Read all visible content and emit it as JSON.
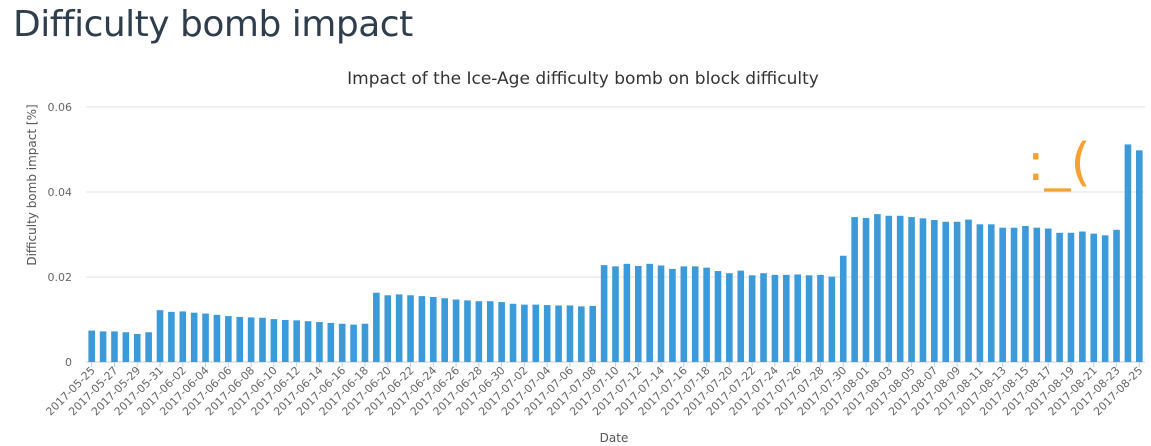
{
  "page": {
    "heading": "Difficulty bomb impact"
  },
  "chart_data": {
    "type": "bar",
    "title": "Impact of the Ice-Age difficulty bomb on block difficulty",
    "xlabel": "Date",
    "ylabel": "Difficulty bomb impact [%]",
    "ylim": [
      0,
      0.06
    ],
    "yticks": [
      {
        "value": 0,
        "label": "0"
      },
      {
        "value": 0.02,
        "label": "0.02"
      },
      {
        "value": 0.04,
        "label": "0.04"
      },
      {
        "value": 0.06,
        "label": "0.06"
      }
    ],
    "grid": true,
    "bar_color": "#3d9ad8",
    "annotation": {
      "text": ":_(",
      "color": "#f5a133"
    },
    "categories": [
      "2017-05-25",
      "2017-05-26",
      "2017-05-27",
      "2017-05-28",
      "2017-05-29",
      "2017-05-30",
      "2017-05-31",
      "2017-06-01",
      "2017-06-02",
      "2017-06-03",
      "2017-06-04",
      "2017-06-05",
      "2017-06-06",
      "2017-06-07",
      "2017-06-08",
      "2017-06-09",
      "2017-06-10",
      "2017-06-11",
      "2017-06-12",
      "2017-06-13",
      "2017-06-14",
      "2017-06-15",
      "2017-06-16",
      "2017-06-17",
      "2017-06-18",
      "2017-06-19",
      "2017-06-20",
      "2017-06-21",
      "2017-06-22",
      "2017-06-23",
      "2017-06-24",
      "2017-06-25",
      "2017-06-26",
      "2017-06-27",
      "2017-06-28",
      "2017-06-29",
      "2017-06-30",
      "2017-07-01",
      "2017-07-02",
      "2017-07-03",
      "2017-07-04",
      "2017-07-05",
      "2017-07-06",
      "2017-07-07",
      "2017-07-08",
      "2017-07-09",
      "2017-07-10",
      "2017-07-11",
      "2017-07-12",
      "2017-07-13",
      "2017-07-14",
      "2017-07-15",
      "2017-07-16",
      "2017-07-17",
      "2017-07-18",
      "2017-07-19",
      "2017-07-20",
      "2017-07-21",
      "2017-07-22",
      "2017-07-23",
      "2017-07-24",
      "2017-07-25",
      "2017-07-26",
      "2017-07-27",
      "2017-07-28",
      "2017-07-29",
      "2017-07-30",
      "2017-07-31",
      "2017-08-01",
      "2017-08-02",
      "2017-08-03",
      "2017-08-04",
      "2017-08-05",
      "2017-08-06",
      "2017-08-07",
      "2017-08-08",
      "2017-08-09",
      "2017-08-10",
      "2017-08-11",
      "2017-08-12",
      "2017-08-13",
      "2017-08-14",
      "2017-08-15",
      "2017-08-16",
      "2017-08-17",
      "2017-08-18",
      "2017-08-19",
      "2017-08-20",
      "2017-08-21",
      "2017-08-22",
      "2017-08-23",
      "2017-08-24",
      "2017-08-25"
    ],
    "values": [
      0.0074,
      0.0072,
      0.0072,
      0.007,
      0.0066,
      0.007,
      0.0122,
      0.0118,
      0.0119,
      0.0116,
      0.0114,
      0.0111,
      0.0108,
      0.0106,
      0.0105,
      0.0104,
      0.0101,
      0.0099,
      0.0098,
      0.0096,
      0.0094,
      0.0092,
      0.009,
      0.0088,
      0.009,
      0.0163,
      0.0157,
      0.0159,
      0.0157,
      0.0155,
      0.0153,
      0.015,
      0.0147,
      0.0145,
      0.0143,
      0.0143,
      0.0141,
      0.0137,
      0.0135,
      0.0135,
      0.0134,
      0.0133,
      0.0133,
      0.0131,
      0.0132,
      0.0228,
      0.0225,
      0.0231,
      0.0226,
      0.0231,
      0.0227,
      0.0219,
      0.0225,
      0.0225,
      0.0222,
      0.0214,
      0.0209,
      0.0215,
      0.0204,
      0.0209,
      0.0205,
      0.0205,
      0.0206,
      0.0204,
      0.0205,
      0.0201,
      0.025,
      0.0341,
      0.0339,
      0.0348,
      0.0344,
      0.0344,
      0.0341,
      0.0338,
      0.0334,
      0.033,
      0.033,
      0.0335,
      0.0324,
      0.0324,
      0.0316,
      0.0316,
      0.032,
      0.0316,
      0.0314,
      0.0304,
      0.0304,
      0.0307,
      0.0302,
      0.0298,
      0.0311,
      0.0512,
      0.0498
    ]
  }
}
